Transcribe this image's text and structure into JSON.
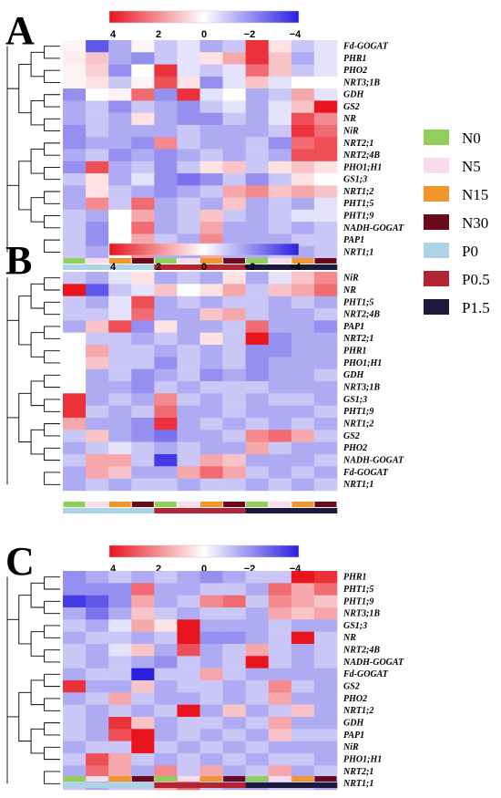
{
  "colors": {
    "high": "#e8141e",
    "mid": "#ffffff",
    "low": "#2a1fe0",
    "N0": "#8fcf5a",
    "N5": "#f9dcec",
    "N15": "#f0962a",
    "N30": "#6a0a1c",
    "P0": "#add3e6",
    "P0.5": "#b32534",
    "P1.5": "#1c1a3c"
  },
  "legend": {
    "items": [
      {
        "label": "N0",
        "color_key": "N0"
      },
      {
        "label": "N5",
        "color_key": "N5"
      },
      {
        "label": "N15",
        "color_key": "N15"
      },
      {
        "label": "N30",
        "color_key": "N30"
      },
      {
        "label": "P0",
        "color_key": "P0"
      },
      {
        "label": "P0.5",
        "color_key": "P0.5"
      },
      {
        "label": "P1.5",
        "color_key": "P1.5"
      }
    ]
  },
  "chart_data": [
    {
      "type": "heatmap",
      "panel": "A",
      "color_scale": {
        "ticks": [
          "4",
          "2",
          "0",
          "−2",
          "−4"
        ],
        "range": [
          4,
          -4
        ]
      },
      "columns_n": [
        "N0",
        "N5",
        "N15",
        "N30",
        "N0",
        "N5",
        "N15",
        "N30",
        "N0",
        "N5",
        "N15",
        "N30"
      ],
      "columns_p": [
        "P0",
        "P0",
        "P0",
        "P0",
        "P0.5",
        "P0.5",
        "P0.5",
        "P0.5",
        "P1.5",
        "P1.5",
        "P1.5",
        "P1.5"
      ],
      "rows": [
        "Fd-GOGAT",
        "PHR1",
        "PHO2",
        "NRT3;1B",
        "GDH",
        "GS2",
        "NR",
        "NiR",
        "NRT2;1",
        "NRT2;4B",
        "PHO1;H1",
        "GS1;3",
        "NRT1;2",
        "PHT1;5",
        "PHT1;9",
        "NADH-GOGAT",
        "PAP1",
        "NRT1;1"
      ],
      "values": [
        [
          0.2,
          -3.0,
          -1.5,
          0.2,
          -1.0,
          -0.5,
          -1.5,
          -1.0,
          3.5,
          0.5,
          -1.0,
          -0.5
        ],
        [
          0.3,
          1.0,
          -1.5,
          -2.0,
          -1.0,
          -0.5,
          0.5,
          1.5,
          3.5,
          1.0,
          -1.5,
          -0.5
        ],
        [
          0.2,
          0.8,
          -2.0,
          0.0,
          3.5,
          -0.5,
          -1.0,
          -0.5,
          2.5,
          1.0,
          -1.0,
          -0.5
        ],
        [
          0.2,
          0.5,
          -1.0,
          0.2,
          3.0,
          0.5,
          -2.0,
          -0.5,
          1.0,
          -0.5,
          0.0,
          0.0
        ],
        [
          -2.0,
          0.0,
          0.2,
          2.5,
          -2.0,
          3.5,
          -0.5,
          0.0,
          -1.5,
          -1.0,
          1.5,
          -0.5
        ],
        [
          -1.5,
          -1.0,
          -2.0,
          -1.0,
          -1.5,
          -2.0,
          -1.0,
          -0.5,
          -1.5,
          -0.5,
          1.0,
          4.0
        ],
        [
          -1.5,
          -1.0,
          -1.5,
          0.5,
          -1.5,
          -2.0,
          -2.0,
          -1.0,
          -1.5,
          -0.5,
          3.0,
          2.0
        ],
        [
          -2.0,
          -1.0,
          -1.5,
          -1.5,
          -1.5,
          -1.0,
          -1.5,
          -1.5,
          -1.5,
          -1.0,
          3.5,
          2.5
        ],
        [
          -2.0,
          -1.5,
          -1.5,
          -2.0,
          2.0,
          -1.0,
          -1.5,
          -1.5,
          -1.0,
          -2.0,
          2.5,
          3.0
        ],
        [
          -1.5,
          -1.0,
          -2.0,
          -1.5,
          -2.0,
          -1.5,
          -1.0,
          -1.5,
          -1.0,
          -1.5,
          3.0,
          3.0
        ],
        [
          -2.0,
          3.0,
          -1.5,
          -1.0,
          -2.0,
          -1.0,
          0.5,
          1.0,
          -1.0,
          0.5,
          1.0,
          0.5
        ],
        [
          -1.0,
          0.5,
          -1.5,
          -0.5,
          -2.0,
          -2.5,
          -2.0,
          -1.0,
          -2.0,
          -1.0,
          0.5,
          0.0
        ],
        [
          -1.5,
          0.5,
          -1.0,
          -1.5,
          -2.0,
          -1.5,
          -1.0,
          1.5,
          2.0,
          1.0,
          1.5,
          1.0
        ],
        [
          -1.5,
          2.0,
          -1.0,
          2.5,
          -1.5,
          -1.0,
          -1.5,
          1.0,
          -1.5,
          -1.0,
          -1.5,
          -0.5
        ],
        [
          -1.0,
          -1.5,
          0.0,
          1.5,
          -1.5,
          -1.0,
          1.0,
          -1.0,
          -1.5,
          -1.0,
          -0.5,
          -0.5
        ],
        [
          -1.0,
          -2.0,
          0.0,
          2.5,
          -1.5,
          -1.0,
          1.5,
          -1.5,
          -1.5,
          -1.0,
          -1.5,
          -1.0
        ],
        [
          -1.0,
          -2.0,
          0.0,
          1.5,
          -1.0,
          -1.5,
          2.0,
          -1.5,
          -1.5,
          -1.5,
          -1.0,
          -1.0
        ],
        [
          -1.0,
          -1.5,
          0.0,
          2.0,
          -1.5,
          -1.5,
          1.5,
          -1.5,
          -1.5,
          -1.0,
          -1.5,
          -1.0
        ]
      ]
    },
    {
      "type": "heatmap",
      "panel": "B",
      "color_scale": {
        "ticks": [
          "4",
          "2",
          "0",
          "−2",
          "−4"
        ],
        "range": [
          4,
          -4
        ]
      },
      "columns_n": [
        "N0",
        "N5",
        "N15",
        "N30",
        "N0",
        "N5",
        "N15",
        "N30",
        "N0",
        "N5",
        "N15",
        "N30"
      ],
      "columns_p": [
        "P0",
        "P0",
        "P0",
        "P0",
        "P0.5",
        "P0.5",
        "P0.5",
        "P0.5",
        "P1.5",
        "P1.5",
        "P1.5",
        "P1.5"
      ],
      "rows": [
        "NiR",
        "NR",
        "PHT1;5",
        "NRT2;4B",
        "PAP1",
        "NRT2;1",
        "PHR1",
        "PHO1;H1",
        "GDH",
        "NRT3;1B",
        "GS1;3",
        "PHT1;9",
        "NRT1;2",
        "GS2",
        "PHO2",
        "NADH-GOGAT",
        "Fd-GOGAT",
        "NRT1;1"
      ],
      "values": [
        [
          -1.0,
          -1.5,
          -0.5,
          0.5,
          -1.5,
          -1.0,
          -1.5,
          0.5,
          -1.5,
          -0.5,
          1.0,
          2.0
        ],
        [
          4.0,
          -3.0,
          -1.0,
          -0.5,
          1.0,
          0.0,
          0.5,
          1.5,
          -1.0,
          1.0,
          1.5,
          2.5
        ],
        [
          -1.0,
          -1.5,
          -0.5,
          3.0,
          -1.5,
          -1.0,
          -1.5,
          -1.0,
          -1.0,
          -1.5,
          -1.0,
          -1.5
        ],
        [
          -1.0,
          -1.0,
          -0.5,
          2.5,
          -1.5,
          -1.5,
          1.0,
          1.5,
          -1.0,
          -1.5,
          -1.5,
          -1.0
        ],
        [
          -1.5,
          1.0,
          3.0,
          -2.0,
          0.5,
          -1.5,
          -1.5,
          -1.0,
          2.5,
          -1.5,
          -1.5,
          -2.0
        ],
        [
          0.0,
          -1.0,
          -1.0,
          -1.5,
          -1.0,
          -1.5,
          0.5,
          -1.0,
          4.0,
          -2.0,
          -1.5,
          -1.5
        ],
        [
          0.0,
          1.5,
          -1.0,
          -1.0,
          -1.5,
          -1.0,
          -1.5,
          -1.0,
          -2.0,
          -2.0,
          -1.5,
          -1.5
        ],
        [
          0.0,
          1.0,
          -1.0,
          -1.0,
          -2.0,
          -1.0,
          -1.5,
          -1.0,
          -2.0,
          -1.5,
          -1.5,
          -1.5
        ],
        [
          0.0,
          -1.5,
          -1.0,
          -2.0,
          -1.5,
          -1.0,
          -2.0,
          -1.5,
          -2.0,
          -1.5,
          -1.5,
          -1.0
        ],
        [
          0.0,
          -1.5,
          -1.5,
          -2.0,
          -1.0,
          -1.5,
          -1.0,
          -1.0,
          -1.0,
          -1.5,
          -1.5,
          -1.5
        ],
        [
          3.5,
          -1.5,
          -1.0,
          -1.5,
          2.0,
          -1.0,
          -1.5,
          -1.0,
          -1.5,
          -1.0,
          -1.0,
          -1.5
        ],
        [
          3.5,
          -1.0,
          -1.5,
          -1.0,
          2.5,
          -1.5,
          -1.5,
          -1.0,
          -1.5,
          -1.5,
          -1.5,
          -1.0
        ],
        [
          1.5,
          -1.5,
          -1.5,
          -2.0,
          3.5,
          -1.5,
          -1.0,
          -1.5,
          -1.0,
          -1.5,
          -1.0,
          -1.5
        ],
        [
          -1.0,
          1.0,
          -1.5,
          -2.0,
          -2.5,
          -1.5,
          -1.5,
          -1.0,
          2.0,
          2.5,
          1.5,
          -1.0
        ],
        [
          -1.5,
          -1.0,
          -0.5,
          -1.0,
          -1.5,
          -1.0,
          -1.5,
          -1.5,
          1.5,
          -1.0,
          -1.5,
          -1.5
        ],
        [
          -1.0,
          1.5,
          1.5,
          -1.0,
          -3.5,
          -1.0,
          1.5,
          1.0,
          -1.5,
          -1.5,
          -1.5,
          -1.0
        ],
        [
          -1.5,
          1.5,
          1.0,
          -1.5,
          -1.5,
          1.5,
          2.5,
          1.5,
          -1.0,
          -1.5,
          -1.0,
          -1.5
        ],
        [
          -1.5,
          -1.0,
          -1.5,
          -1.0,
          -1.0,
          -1.5,
          -1.0,
          -1.0,
          -1.5,
          -1.0,
          -1.5,
          -1.0
        ]
      ]
    },
    {
      "type": "heatmap",
      "panel": "C",
      "color_scale": {
        "ticks": [
          "4",
          "2",
          "0",
          "−2",
          "−4"
        ],
        "range": [
          4,
          -4
        ]
      },
      "columns_n": [
        "N0",
        "N5",
        "N15",
        "N30",
        "N0",
        "N5",
        "N15",
        "N30",
        "N0",
        "N5",
        "N15",
        "N30"
      ],
      "columns_p": [
        "P0",
        "P0",
        "P0",
        "P0",
        "P0.5",
        "P0.5",
        "P0.5",
        "P0.5",
        "P1.5",
        "P1.5",
        "P1.5",
        "P1.5"
      ],
      "rows": [
        "PHR1",
        "PHT1;5",
        "PHT1;9",
        "NRT3;1B",
        "GS1;3",
        "NR",
        "NRT2;4B",
        "NADH-GOGAT",
        "Fd-GOGAT",
        "GS2",
        "PHO2",
        "NRT1;2",
        "GDH",
        "PAP1",
        "NiR",
        "PHO1;H1",
        "NRT2;1",
        "NRT1;1"
      ],
      "values": [
        [
          -2.0,
          -1.5,
          -1.0,
          -1.5,
          -1.0,
          -1.5,
          -2.0,
          -1.5,
          -1.0,
          -1.0,
          4.0,
          3.5
        ],
        [
          -2.0,
          -2.0,
          -2.0,
          2.5,
          -1.5,
          -1.5,
          -1.0,
          -1.0,
          -1.5,
          2.5,
          1.5,
          2.5
        ],
        [
          -3.5,
          -3.0,
          -2.0,
          1.5,
          -1.5,
          -1.0,
          2.0,
          2.5,
          -1.0,
          2.0,
          1.5,
          1.0
        ],
        [
          -1.5,
          -2.5,
          -1.5,
          1.0,
          -1.0,
          -1.5,
          -1.0,
          -1.0,
          -1.5,
          1.5,
          1.0,
          1.5
        ],
        [
          -1.0,
          -1.5,
          -0.5,
          1.5,
          0.5,
          4.0,
          -1.5,
          -1.5,
          -1.5,
          -1.0,
          -1.5,
          -1.5
        ],
        [
          -1.5,
          -1.0,
          -1.0,
          -1.5,
          -1.0,
          4.0,
          -2.0,
          -2.0,
          -1.5,
          -1.0,
          4.0,
          -1.0
        ],
        [
          -1.0,
          -1.5,
          -0.5,
          1.0,
          -1.5,
          3.0,
          -1.5,
          -1.0,
          1.5,
          -1.0,
          -1.5,
          -1.0
        ],
        [
          -1.0,
          -1.5,
          -1.0,
          -1.5,
          -2.0,
          -1.0,
          -1.5,
          -1.0,
          4.0,
          -1.0,
          -1.5,
          -1.0
        ],
        [
          -1.5,
          -1.0,
          -1.0,
          -4.0,
          -1.0,
          -1.0,
          1.5,
          -1.0,
          -1.5,
          -1.5,
          -1.5,
          -1.5
        ],
        [
          3.5,
          -1.5,
          -1.5,
          1.0,
          -1.5,
          -1.0,
          -1.0,
          -1.5,
          -1.0,
          2.0,
          -1.0,
          -1.5
        ],
        [
          -1.5,
          -1.0,
          1.5,
          -1.0,
          -1.5,
          -1.5,
          -1.0,
          -1.5,
          -1.0,
          1.5,
          -1.5,
          -1.5
        ],
        [
          -1.0,
          -1.5,
          -1.0,
          -1.5,
          -1.0,
          4.0,
          -1.5,
          1.0,
          -1.5,
          -1.0,
          1.0,
          -1.5
        ],
        [
          -1.0,
          -1.5,
          3.5,
          1.0,
          -1.5,
          -1.0,
          -1.0,
          -1.5,
          -1.0,
          1.5,
          -1.5,
          -1.5
        ],
        [
          -1.0,
          -1.5,
          3.0,
          4.0,
          -1.5,
          -1.0,
          -1.5,
          -1.0,
          -1.5,
          1.0,
          -1.0,
          -1.0
        ],
        [
          -1.5,
          -1.0,
          -1.0,
          4.0,
          -1.0,
          -1.5,
          -1.0,
          -1.5,
          -1.0,
          -1.5,
          -1.5,
          -1.5
        ],
        [
          -1.0,
          3.0,
          1.5,
          -1.0,
          -1.5,
          -1.0,
          -1.5,
          -1.0,
          -1.5,
          -1.0,
          -1.0,
          -1.5
        ],
        [
          -1.5,
          2.5,
          1.5,
          -1.5,
          2.0,
          -1.0,
          1.5,
          -1.5,
          -1.0,
          1.5,
          -1.5,
          -1.0
        ],
        [
          -1.0,
          -1.5,
          -1.0,
          -1.0,
          1.5,
          2.5,
          -1.0,
          -1.5,
          -1.5,
          -1.0,
          -1.0,
          -1.5
        ]
      ]
    }
  ]
}
